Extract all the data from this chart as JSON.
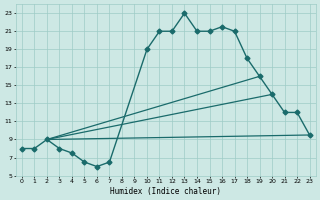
{
  "xlabel": "Humidex (Indice chaleur)",
  "xlim": [
    -0.5,
    23.5
  ],
  "ylim": [
    5,
    24
  ],
  "yticks": [
    5,
    7,
    9,
    11,
    13,
    15,
    17,
    19,
    21,
    23
  ],
  "xticks": [
    0,
    1,
    2,
    3,
    4,
    5,
    6,
    7,
    8,
    9,
    10,
    11,
    12,
    13,
    14,
    15,
    16,
    17,
    18,
    19,
    20,
    21,
    22,
    23
  ],
  "bg_color": "#cde8e4",
  "grid_color": "#9eccc6",
  "line_color": "#1a6b6b",
  "series": [
    {
      "x": [
        0,
        1,
        2,
        3,
        4,
        5,
        6,
        7,
        10,
        11,
        12,
        13,
        14,
        15,
        16,
        17,
        18,
        19,
        20,
        21,
        22,
        23
      ],
      "y": [
        8,
        8,
        9,
        8,
        7.5,
        6.5,
        6,
        6.5,
        19,
        21,
        21,
        23,
        21,
        21,
        21.5,
        21,
        18,
        16,
        14,
        12,
        12,
        9.5
      ],
      "marker": "D",
      "markersize": 2.5,
      "linewidth": 1.0
    },
    {
      "x": [
        2,
        19
      ],
      "y": [
        9,
        16
      ],
      "marker": null,
      "linewidth": 0.9
    },
    {
      "x": [
        2,
        20
      ],
      "y": [
        9,
        14
      ],
      "marker": null,
      "linewidth": 0.9
    },
    {
      "x": [
        2,
        23
      ],
      "y": [
        9,
        9.5
      ],
      "marker": null,
      "linewidth": 0.9
    }
  ]
}
